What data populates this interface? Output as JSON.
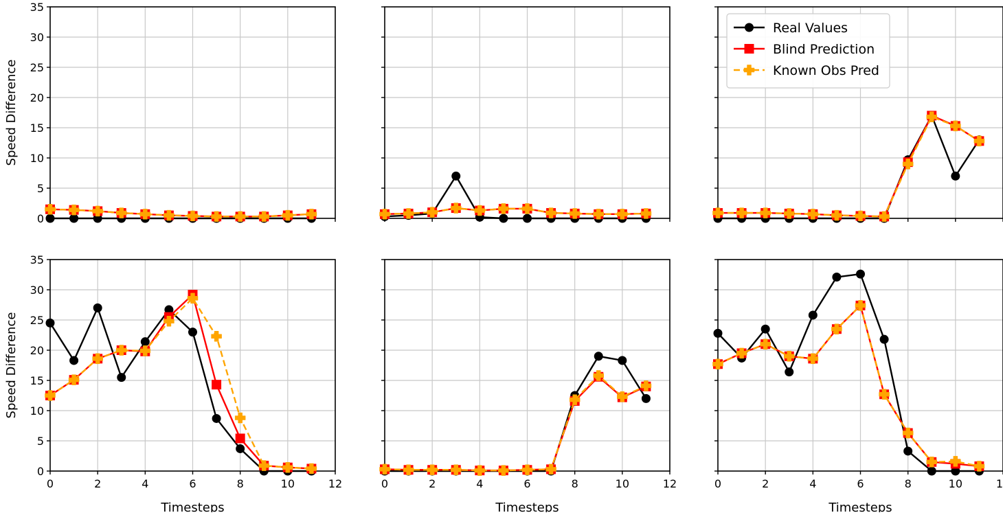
{
  "chart_data": {
    "type": "line",
    "layout": "2x3 grid of subplots, shared x and y axes",
    "shared_axes": {
      "xlim": [
        0,
        12
      ],
      "ylim": [
        0,
        35
      ],
      "xticks": [
        0,
        2,
        4,
        6,
        8,
        10,
        12
      ],
      "yticks": [
        0,
        5,
        10,
        15,
        20,
        25,
        30,
        35
      ],
      "xlabel": "Timesteps",
      "ylabel": "Speed Difference",
      "grid": true
    },
    "series_styles": [
      {
        "name": "Real Values",
        "color": "#000000",
        "marker": "circle",
        "line": "solid"
      },
      {
        "name": "Blind Prediction",
        "color": "#ff0000",
        "marker": "square",
        "line": "solid"
      },
      {
        "name": "Known Obs Pred",
        "color": "#ffa500",
        "marker": "plus",
        "line": "dashed"
      }
    ],
    "legend": {
      "location": "top-right of top-right subplot",
      "entries": [
        "Real Values",
        "Blind Prediction",
        "Known Obs Pred"
      ]
    },
    "panels": [
      {
        "id": "top-left",
        "x": [
          0,
          1,
          2,
          3,
          4,
          5,
          6,
          7,
          8,
          9,
          10,
          11
        ],
        "series": [
          {
            "name": "Real Values",
            "values": [
              0,
              0,
              0,
              0,
              0,
              0,
              0,
              0,
              0,
              0,
              0,
              0
            ]
          },
          {
            "name": "Blind Prediction",
            "values": [
              1.5,
              1.4,
              1.2,
              0.9,
              0.7,
              0.5,
              0.4,
              0.3,
              0.3,
              0.3,
              0.5,
              0.7
            ]
          },
          {
            "name": "Known Obs Pred",
            "values": [
              1.5,
              1.4,
              1.2,
              0.9,
              0.7,
              0.5,
              0.4,
              0.3,
              0.3,
              0.3,
              0.5,
              0.7
            ]
          }
        ]
      },
      {
        "id": "top-middle",
        "x": [
          0,
          1,
          2,
          3,
          4,
          5,
          6,
          7,
          8,
          9,
          10,
          11
        ],
        "series": [
          {
            "name": "Real Values",
            "values": [
              0.3,
              0.5,
              0.8,
              7.0,
              0.2,
              0,
              0,
              0,
              0,
              0,
              0,
              0
            ]
          },
          {
            "name": "Blind Prediction",
            "values": [
              0.7,
              0.8,
              1.0,
              1.7,
              1.3,
              1.6,
              1.6,
              0.9,
              0.8,
              0.7,
              0.7,
              0.8
            ]
          },
          {
            "name": "Known Obs Pred",
            "values": [
              0.7,
              0.8,
              1.0,
              1.7,
              1.3,
              1.6,
              1.6,
              0.9,
              0.8,
              0.7,
              0.7,
              0.8
            ]
          }
        ]
      },
      {
        "id": "top-right",
        "x": [
          0,
          1,
          2,
          3,
          4,
          5,
          6,
          7,
          8,
          9,
          10,
          11
        ],
        "series": [
          {
            "name": "Real Values",
            "values": [
              0,
              0,
              0,
              0,
              0,
              0,
              0,
              0,
              9.7,
              17.0,
              7.0,
              13.0
            ]
          },
          {
            "name": "Blind Prediction",
            "values": [
              0.9,
              0.9,
              0.9,
              0.8,
              0.7,
              0.5,
              0.4,
              0.3,
              9.3,
              17.0,
              15.3,
              12.8
            ]
          },
          {
            "name": "Known Obs Pred",
            "values": [
              0.9,
              0.9,
              0.9,
              0.8,
              0.7,
              0.5,
              0.4,
              0.3,
              9.0,
              16.8,
              15.3,
              12.8
            ]
          }
        ]
      },
      {
        "id": "bottom-left",
        "x": [
          0,
          1,
          2,
          3,
          4,
          5,
          6,
          7,
          8,
          9,
          10,
          11
        ],
        "series": [
          {
            "name": "Real Values",
            "values": [
              24.5,
              18.3,
              27.0,
              15.5,
              21.4,
              26.7,
              23.0,
              8.7,
              3.7,
              0,
              0,
              0
            ]
          },
          {
            "name": "Blind Prediction",
            "values": [
              12.5,
              15.1,
              18.6,
              20.0,
              19.8,
              25.5,
              29.2,
              14.3,
              5.4,
              0.9,
              0.6,
              0.4
            ]
          },
          {
            "name": "Known Obs Pred",
            "values": [
              12.5,
              15.1,
              18.6,
              20.0,
              19.9,
              24.8,
              28.6,
              22.3,
              8.8,
              0.9,
              0.6,
              0.4
            ]
          }
        ]
      },
      {
        "id": "bottom-middle",
        "x": [
          0,
          1,
          2,
          3,
          4,
          5,
          6,
          7,
          8,
          9,
          10,
          11
        ],
        "series": [
          {
            "name": "Real Values",
            "values": [
              0,
              0,
              0,
              0,
              0,
              0,
              0,
              0,
              12.5,
              19.0,
              18.3,
              12.0
            ]
          },
          {
            "name": "Blind Prediction",
            "values": [
              0.3,
              0.2,
              0.2,
              0.2,
              0.1,
              0.1,
              0.2,
              0.3,
              11.6,
              15.6,
              12.2,
              14.0
            ]
          },
          {
            "name": "Known Obs Pred",
            "values": [
              0.3,
              0.2,
              0.2,
              0.2,
              0.1,
              0.1,
              0.2,
              0.3,
              11.8,
              15.8,
              12.3,
              14.1
            ]
          }
        ]
      },
      {
        "id": "bottom-right",
        "x": [
          0,
          1,
          2,
          3,
          4,
          5,
          6,
          7,
          8,
          9,
          10,
          11
        ],
        "series": [
          {
            "name": "Real Values",
            "values": [
              22.8,
              18.7,
              23.5,
              16.4,
              25.8,
              32.1,
              32.6,
              21.8,
              3.3,
              0,
              0,
              0
            ]
          },
          {
            "name": "Blind Prediction",
            "values": [
              17.7,
              19.5,
              21.0,
              19.0,
              18.6,
              23.5,
              27.4,
              12.7,
              6.3,
              1.5,
              1.2,
              0.8
            ]
          },
          {
            "name": "Known Obs Pred",
            "values": [
              17.7,
              19.5,
              21.0,
              19.0,
              18.6,
              23.5,
              27.4,
              12.7,
              6.3,
              1.5,
              1.6,
              0.8
            ]
          }
        ]
      }
    ]
  }
}
